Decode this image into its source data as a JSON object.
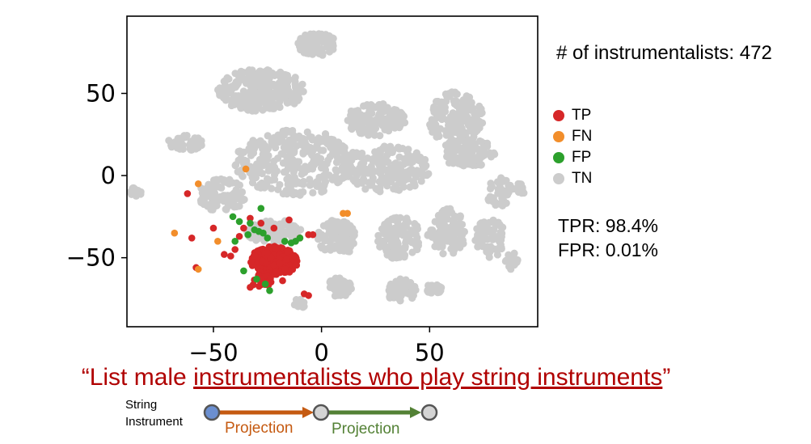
{
  "count_text": "# of instrumentalists: 472",
  "metrics": {
    "tpr": "TPR: 98.4%",
    "fpr": "FPR: 0.01%"
  },
  "query": {
    "open_quote": "“",
    "prefix": "List male ",
    "highlight": "instrumentalists who play string instruments",
    "close_quote": "”"
  },
  "pipeline": {
    "start_label_line1": "String",
    "start_label_line2": "Instrument",
    "step1_label": "Projection",
    "step2_label": "Projection",
    "colors": {
      "start_node": "#6b8fd0",
      "node": "#d4d4d4",
      "step1": "#c55a11",
      "step2": "#538135"
    }
  },
  "chart_data": {
    "type": "scatter",
    "xlim": [
      -90,
      100
    ],
    "ylim": [
      -92,
      97
    ],
    "xticks": [
      -50,
      0,
      50
    ],
    "yticks": [
      50,
      0,
      -50
    ],
    "xtick_labels": [
      "−50",
      "0",
      "50"
    ],
    "ytick_labels": [
      "50",
      "0",
      "−50"
    ],
    "grid": false,
    "legend": [
      {
        "label": "TP",
        "color": "#d62728"
      },
      {
        "label": "FN",
        "color": "#f28e2b"
      },
      {
        "label": "FP",
        "color": "#2ca02c"
      },
      {
        "label": "TN",
        "color": "#cccccc"
      }
    ],
    "series": [
      {
        "name": "TN",
        "color": "#cccccc",
        "clusters": [
          {
            "cx": -2,
            "cy": 80,
            "rx": 9,
            "ry": 7,
            "n": 90
          },
          {
            "cx": -28,
            "cy": 52,
            "rx": 20,
            "ry": 13,
            "n": 260
          },
          {
            "cx": 25,
            "cy": 34,
            "rx": 14,
            "ry": 10,
            "n": 150
          },
          {
            "cx": 62,
            "cy": 35,
            "rx": 13,
            "ry": 16,
            "n": 160
          },
          {
            "cx": 68,
            "cy": 14,
            "rx": 13,
            "ry": 9,
            "n": 110
          },
          {
            "cx": -12,
            "cy": 8,
            "rx": 28,
            "ry": 20,
            "n": 300
          },
          {
            "cx": 30,
            "cy": 4,
            "rx": 20,
            "ry": 14,
            "n": 180
          },
          {
            "cx": -63,
            "cy": 20,
            "rx": 8,
            "ry": 5,
            "n": 50
          },
          {
            "cx": -46,
            "cy": -12,
            "rx": 11,
            "ry": 10,
            "n": 100
          },
          {
            "cx": -22,
            "cy": -34,
            "rx": 13,
            "ry": 7,
            "n": 110
          },
          {
            "cx": 7,
            "cy": -38,
            "rx": 9,
            "ry": 11,
            "n": 90
          },
          {
            "cx": 36,
            "cy": -38,
            "rx": 10,
            "ry": 13,
            "n": 110
          },
          {
            "cx": 58,
            "cy": -34,
            "rx": 9,
            "ry": 14,
            "n": 90
          },
          {
            "cx": 78,
            "cy": -38,
            "rx": 7,
            "ry": 12,
            "n": 60
          },
          {
            "cx": 8,
            "cy": -68,
            "rx": 6,
            "ry": 6,
            "n": 45
          },
          {
            "cx": 37,
            "cy": -70,
            "rx": 7,
            "ry": 7,
            "n": 55
          },
          {
            "cx": 52,
            "cy": -68,
            "rx": 4,
            "ry": 4,
            "n": 25
          },
          {
            "cx": -86,
            "cy": -10,
            "rx": 3,
            "ry": 3,
            "n": 14
          },
          {
            "cx": 82,
            "cy": -10,
            "rx": 6,
            "ry": 9,
            "n": 40
          },
          {
            "cx": 88,
            "cy": -52,
            "rx": 4,
            "ry": 5,
            "n": 18
          },
          {
            "cx": 92,
            "cy": -8,
            "rx": 3,
            "ry": 4,
            "n": 12
          },
          {
            "cx": -10,
            "cy": -78,
            "rx": 3,
            "ry": 3,
            "n": 10
          }
        ]
      },
      {
        "name": "TP",
        "color": "#d62728",
        "clusters": [
          {
            "cx": -22,
            "cy": -52,
            "rx": 11,
            "ry": 9,
            "n": 240
          },
          {
            "cx": -28,
            "cy": -64,
            "rx": 5,
            "ry": 4,
            "n": 25
          }
        ],
        "points": [
          [
            -62,
            -11
          ],
          [
            -60,
            -38
          ],
          [
            -50,
            -32
          ],
          [
            -45,
            -48
          ],
          [
            -42,
            -49
          ],
          [
            -38,
            -37
          ],
          [
            -36,
            -32
          ],
          [
            -33,
            -26
          ],
          [
            -28,
            -29
          ],
          [
            -22,
            -32
          ],
          [
            -15,
            -27
          ],
          [
            -10,
            -38
          ],
          [
            -6,
            -36
          ],
          [
            -4,
            -36
          ],
          [
            -58,
            -56
          ],
          [
            -8,
            -72
          ],
          [
            -6,
            -73
          ],
          [
            -33,
            -68
          ],
          [
            -40,
            -45
          ],
          [
            -18,
            -64
          ]
        ]
      },
      {
        "name": "FN",
        "color": "#f28e2b",
        "points": [
          [
            -35,
            4
          ],
          [
            -57,
            -5
          ],
          [
            -68,
            -35
          ],
          [
            -48,
            -40
          ],
          [
            -57,
            -57
          ],
          [
            10,
            -23
          ],
          [
            12,
            -23
          ]
        ]
      },
      {
        "name": "FP",
        "color": "#2ca02c",
        "points": [
          [
            -41,
            -25
          ],
          [
            -38,
            -28
          ],
          [
            -33,
            -29
          ],
          [
            -31,
            -33
          ],
          [
            -29,
            -34
          ],
          [
            -27,
            -35
          ],
          [
            -25,
            -38
          ],
          [
            -17,
            -40
          ],
          [
            -14,
            -41
          ],
          [
            -12,
            -40
          ],
          [
            -10,
            -38
          ],
          [
            -34,
            -36
          ],
          [
            -28,
            -20
          ],
          [
            -30,
            -63
          ],
          [
            -26,
            -66
          ],
          [
            -24,
            -70
          ],
          [
            -36,
            -58
          ],
          [
            -40,
            -40
          ]
        ]
      }
    ]
  }
}
